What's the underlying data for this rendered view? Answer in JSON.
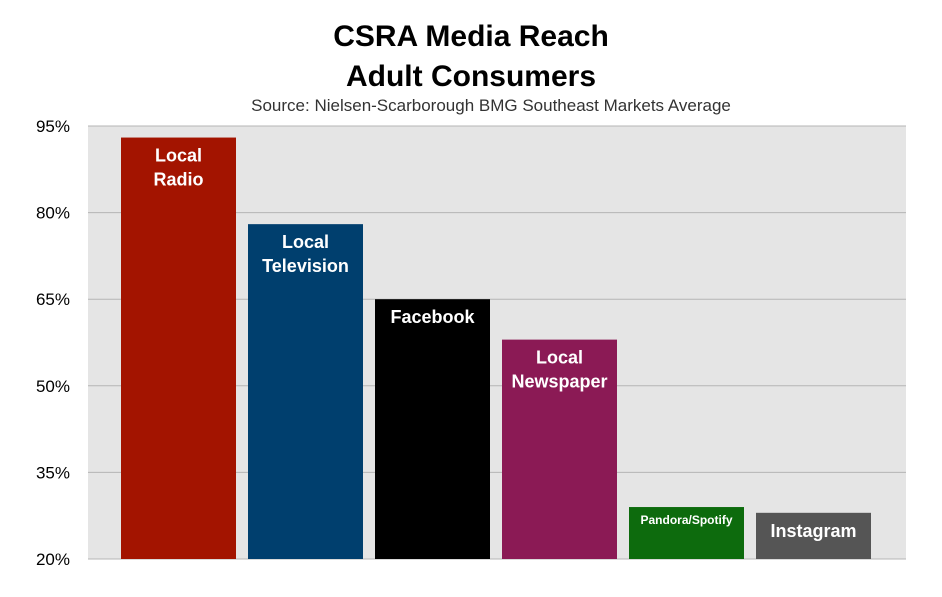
{
  "chart_data": {
    "type": "bar",
    "title": "CSRA Media Reach",
    "title_line2": "Adult Consumers",
    "subtitle": "Source: Nielsen-Scarborough BMG Southeast Markets Average",
    "xlabel": "",
    "ylabel": "",
    "ylim": [
      20,
      95
    ],
    "yticks": [
      "20%",
      "35%",
      "50%",
      "65%",
      "80%",
      "95%"
    ],
    "ytick_values": [
      20,
      35,
      50,
      65,
      80,
      95
    ],
    "grid": true,
    "categories": [
      "Local Radio",
      "Local Television",
      "Facebook",
      "Local Newspaper",
      "Pandora/Spotify",
      "Instagram"
    ],
    "bar_labels": [
      [
        "Local",
        "Radio"
      ],
      [
        "Local",
        "Television"
      ],
      [
        "Facebook"
      ],
      [
        "Local",
        "Newspaper"
      ],
      [
        "Pandora/Spotify"
      ],
      [
        "Instagram"
      ]
    ],
    "values": [
      93,
      78,
      65,
      58,
      29,
      28
    ],
    "colors": [
      "#a31400",
      "#003f6e",
      "#000000",
      "#8b1a55",
      "#0d6b0d",
      "#555555"
    ],
    "plot_background": "#e5e5e5"
  }
}
